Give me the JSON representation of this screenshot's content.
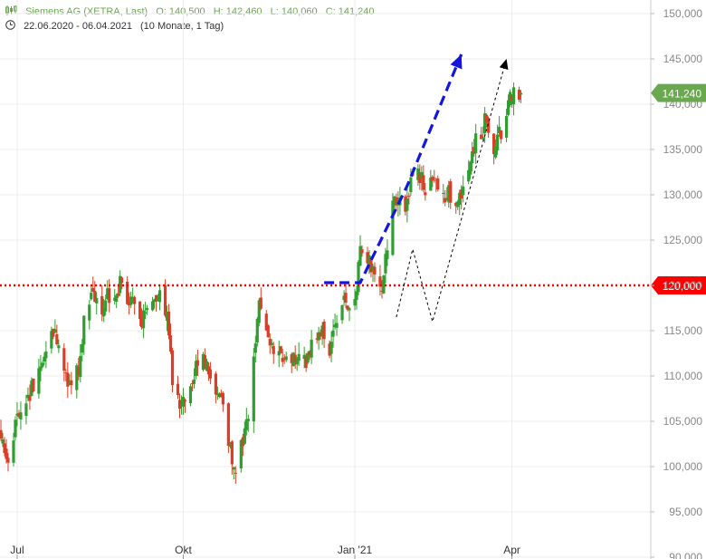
{
  "header": {
    "instrument": "Siemens AG (XETRA, Last)",
    "ohlc": {
      "open": "O: 140,500",
      "high": "H: 142,460",
      "low": "L: 140,060",
      "close": "C: 141,240"
    },
    "range": "22.06.2020 - 06.04.2021",
    "interval": "(10 Monate, 1 Tag)",
    "icons": {
      "chart_type": "candlestick-icon",
      "period": "clock-icon"
    }
  },
  "chart_data": {
    "type": "candlestick",
    "title": "Siemens AG (XETRA, Last)",
    "x_range": [
      "22.06.2020",
      "06.04.2021"
    ],
    "x_ticks": [
      "Jul",
      "Okt",
      "Jan '21",
      "Apr"
    ],
    "y_ticks": [
      "150,000",
      "145,000",
      "140,000",
      "135,000",
      "130,000",
      "125,000",
      "120,000",
      "115,000",
      "110,000",
      "105,000",
      "100,000",
      "95,000",
      "90,000"
    ],
    "ylim": [
      90,
      151
    ],
    "grid": true,
    "last_price": {
      "value": 141.24,
      "label": "141,240",
      "color": "#6aa84f"
    },
    "resistance_line": {
      "value": 120.0,
      "label": "120,000",
      "color": "#ff0000",
      "style": "dotted"
    },
    "colors": {
      "up": "#2e9e2e",
      "down": "#e03b24"
    },
    "close_path": [
      [
        "22.06.2020",
        104
      ],
      [
        "26.06.2020",
        101
      ],
      [
        "01.07.2020",
        105.5
      ],
      [
        "08.07.2020",
        108
      ],
      [
        "14.07.2020",
        112
      ],
      [
        "20.07.2020",
        115
      ],
      [
        "24.07.2020",
        113.5
      ],
      [
        "29.07.2020",
        109
      ],
      [
        "04.08.2020",
        110.5
      ],
      [
        "07.08.2020",
        116
      ],
      [
        "11.08.2020",
        118.5
      ],
      [
        "17.08.2020",
        117.5
      ],
      [
        "21.08.2020",
        119
      ],
      [
        "27.08.2020",
        120
      ],
      [
        "01.09.2020",
        117
      ],
      [
        "04.09.2020",
        119
      ],
      [
        "08.09.2020",
        116
      ],
      [
        "14.09.2020",
        118
      ],
      [
        "18.09.2020",
        119
      ],
      [
        "22.09.2020",
        116
      ],
      [
        "25.09.2020",
        110
      ],
      [
        "29.09.2020",
        106
      ],
      [
        "02.10.2020",
        107.5
      ],
      [
        "06.10.2020",
        109
      ],
      [
        "09.10.2020",
        111.5
      ],
      [
        "12.10.2020",
        112.5
      ],
      [
        "15.10.2020",
        110
      ],
      [
        "20.10.2020",
        108
      ],
      [
        "23.10.2020",
        107
      ],
      [
        "28.10.2020",
        101
      ],
      [
        "30.10.2020",
        99.5
      ],
      [
        "03.11.2020",
        103
      ],
      [
        "06.11.2020",
        106
      ],
      [
        "10.11.2020",
        113
      ],
      [
        "12.11.2020",
        118
      ],
      [
        "17.11.2020",
        114.5
      ],
      [
        "20.11.2020",
        113
      ],
      [
        "25.11.2020",
        112
      ],
      [
        "30.11.2020",
        111
      ],
      [
        "03.12.2020",
        112.5
      ],
      [
        "08.12.2020",
        112
      ],
      [
        "11.12.2020",
        113
      ],
      [
        "16.12.2020",
        115
      ],
      [
        "21.12.2020",
        113
      ],
      [
        "24.12.2020",
        115.5
      ],
      [
        "29.12.2020",
        118.5
      ],
      [
        "04.01.2021",
        117.5
      ],
      [
        "07.01.2021",
        124
      ],
      [
        "11.01.2021",
        123.5
      ],
      [
        "14.01.2021",
        122
      ],
      [
        "18.01.2021",
        119
      ],
      [
        "21.01.2021",
        123
      ],
      [
        "25.01.2021",
        129
      ],
      [
        "28.01.2021",
        130
      ],
      [
        "02.02.2021",
        129
      ],
      [
        "05.02.2021",
        133
      ],
      [
        "09.02.2021",
        132
      ],
      [
        "12.02.2021",
        131
      ],
      [
        "16.02.2021",
        132
      ],
      [
        "19.02.2021",
        130.5
      ],
      [
        "23.02.2021",
        130
      ],
      [
        "26.02.2021",
        130
      ],
      [
        "02.03.2021",
        129.5
      ],
      [
        "05.03.2021",
        131
      ],
      [
        "09.03.2021",
        134
      ],
      [
        "12.03.2021",
        136
      ],
      [
        "15.03.2021",
        135.5
      ],
      [
        "17.03.2021",
        139
      ],
      [
        "19.03.2021",
        136
      ],
      [
        "22.03.2021",
        134.5
      ],
      [
        "24.03.2021",
        136
      ],
      [
        "26.03.2021",
        137
      ],
      [
        "30.03.2021",
        140
      ],
      [
        "01.04.2021",
        141
      ],
      [
        "06.04.2021",
        141.24
      ]
    ],
    "annotations": [
      {
        "type": "arrow",
        "style": "dashed",
        "color": "#1515e0",
        "points": [
          [
            "18.12.2020",
            120.3
          ],
          [
            "07.01.2021",
            120.3
          ],
          [
            "02.02.2021",
            131
          ],
          [
            "04.03.2021",
            145.5
          ]
        ]
      },
      {
        "type": "arrow",
        "style": "dotted",
        "color": "#000000",
        "points": [
          [
            "27.01.2021",
            116.5
          ],
          [
            "05.02.2021",
            124
          ],
          [
            "16.02.2021",
            116
          ],
          [
            "29.03.2021",
            145
          ]
        ]
      }
    ]
  }
}
